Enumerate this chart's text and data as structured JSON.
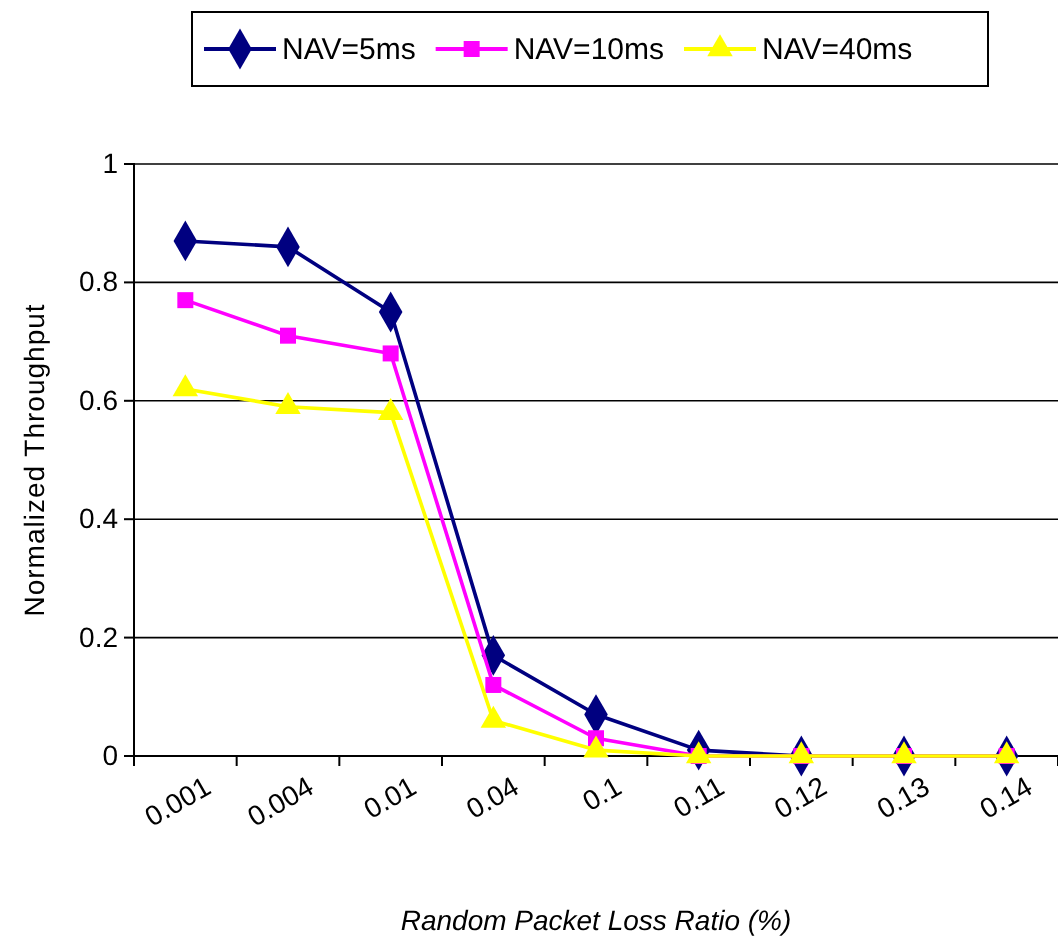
{
  "chart_data": {
    "type": "line",
    "xlabel": "Random Packet Loss Ratio (%)",
    "ylabel": "Normalized Throughput",
    "categories": [
      "0.001",
      "0.004",
      "0.01",
      "0.04",
      "0.1",
      "0.11",
      "0.12",
      "0.13",
      "0.14"
    ],
    "series": [
      {
        "name": "NAV=5ms",
        "color": "#000080",
        "marker": "diamond",
        "values": [
          0.87,
          0.86,
          0.75,
          0.17,
          0.07,
          0.01,
          0,
          0,
          0
        ]
      },
      {
        "name": "NAV=10ms",
        "color": "#ff00ff",
        "marker": "square",
        "values": [
          0.77,
          0.71,
          0.68,
          0.12,
          0.03,
          0,
          0,
          0,
          0
        ]
      },
      {
        "name": "NAV=40ms",
        "color": "#ffff00",
        "marker": "triangle",
        "values": [
          0.62,
          0.59,
          0.58,
          0.06,
          0.01,
          0,
          0,
          0,
          0
        ]
      }
    ],
    "ylim": [
      0,
      1
    ],
    "yticks": [
      0,
      0.2,
      0.4,
      0.6,
      0.8,
      1
    ],
    "grid": "y",
    "legend": "top"
  }
}
